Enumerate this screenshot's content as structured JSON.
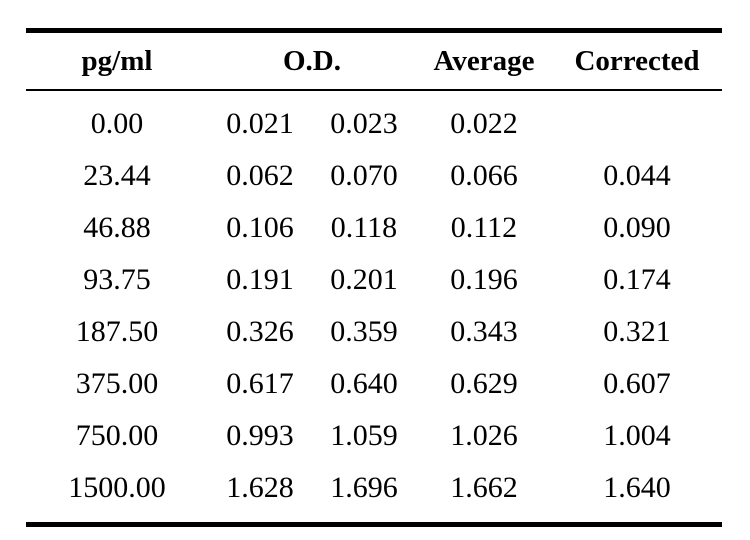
{
  "headers": {
    "pg": "pg/ml",
    "od": "O.D.",
    "average": "Average",
    "corrected": "Corrected"
  },
  "rows": [
    {
      "pg": "0.00",
      "od1": "0.021",
      "od2": "0.023",
      "average": "0.022",
      "corrected": ""
    },
    {
      "pg": "23.44",
      "od1": "0.062",
      "od2": "0.070",
      "average": "0.066",
      "corrected": "0.044"
    },
    {
      "pg": "46.88",
      "od1": "0.106",
      "od2": "0.118",
      "average": "0.112",
      "corrected": "0.090"
    },
    {
      "pg": "93.75",
      "od1": "0.191",
      "od2": "0.201",
      "average": "0.196",
      "corrected": "0.174"
    },
    {
      "pg": "187.50",
      "od1": "0.326",
      "od2": "0.359",
      "average": "0.343",
      "corrected": "0.321"
    },
    {
      "pg": "375.00",
      "od1": "0.617",
      "od2": "0.640",
      "average": "0.629",
      "corrected": "0.607"
    },
    {
      "pg": "750.00",
      "od1": "0.993",
      "od2": "1.059",
      "average": "1.026",
      "corrected": "1.004"
    },
    {
      "pg": "1500.00",
      "od1": "1.628",
      "od2": "1.696",
      "average": "1.662",
      "corrected": "1.640"
    }
  ]
}
